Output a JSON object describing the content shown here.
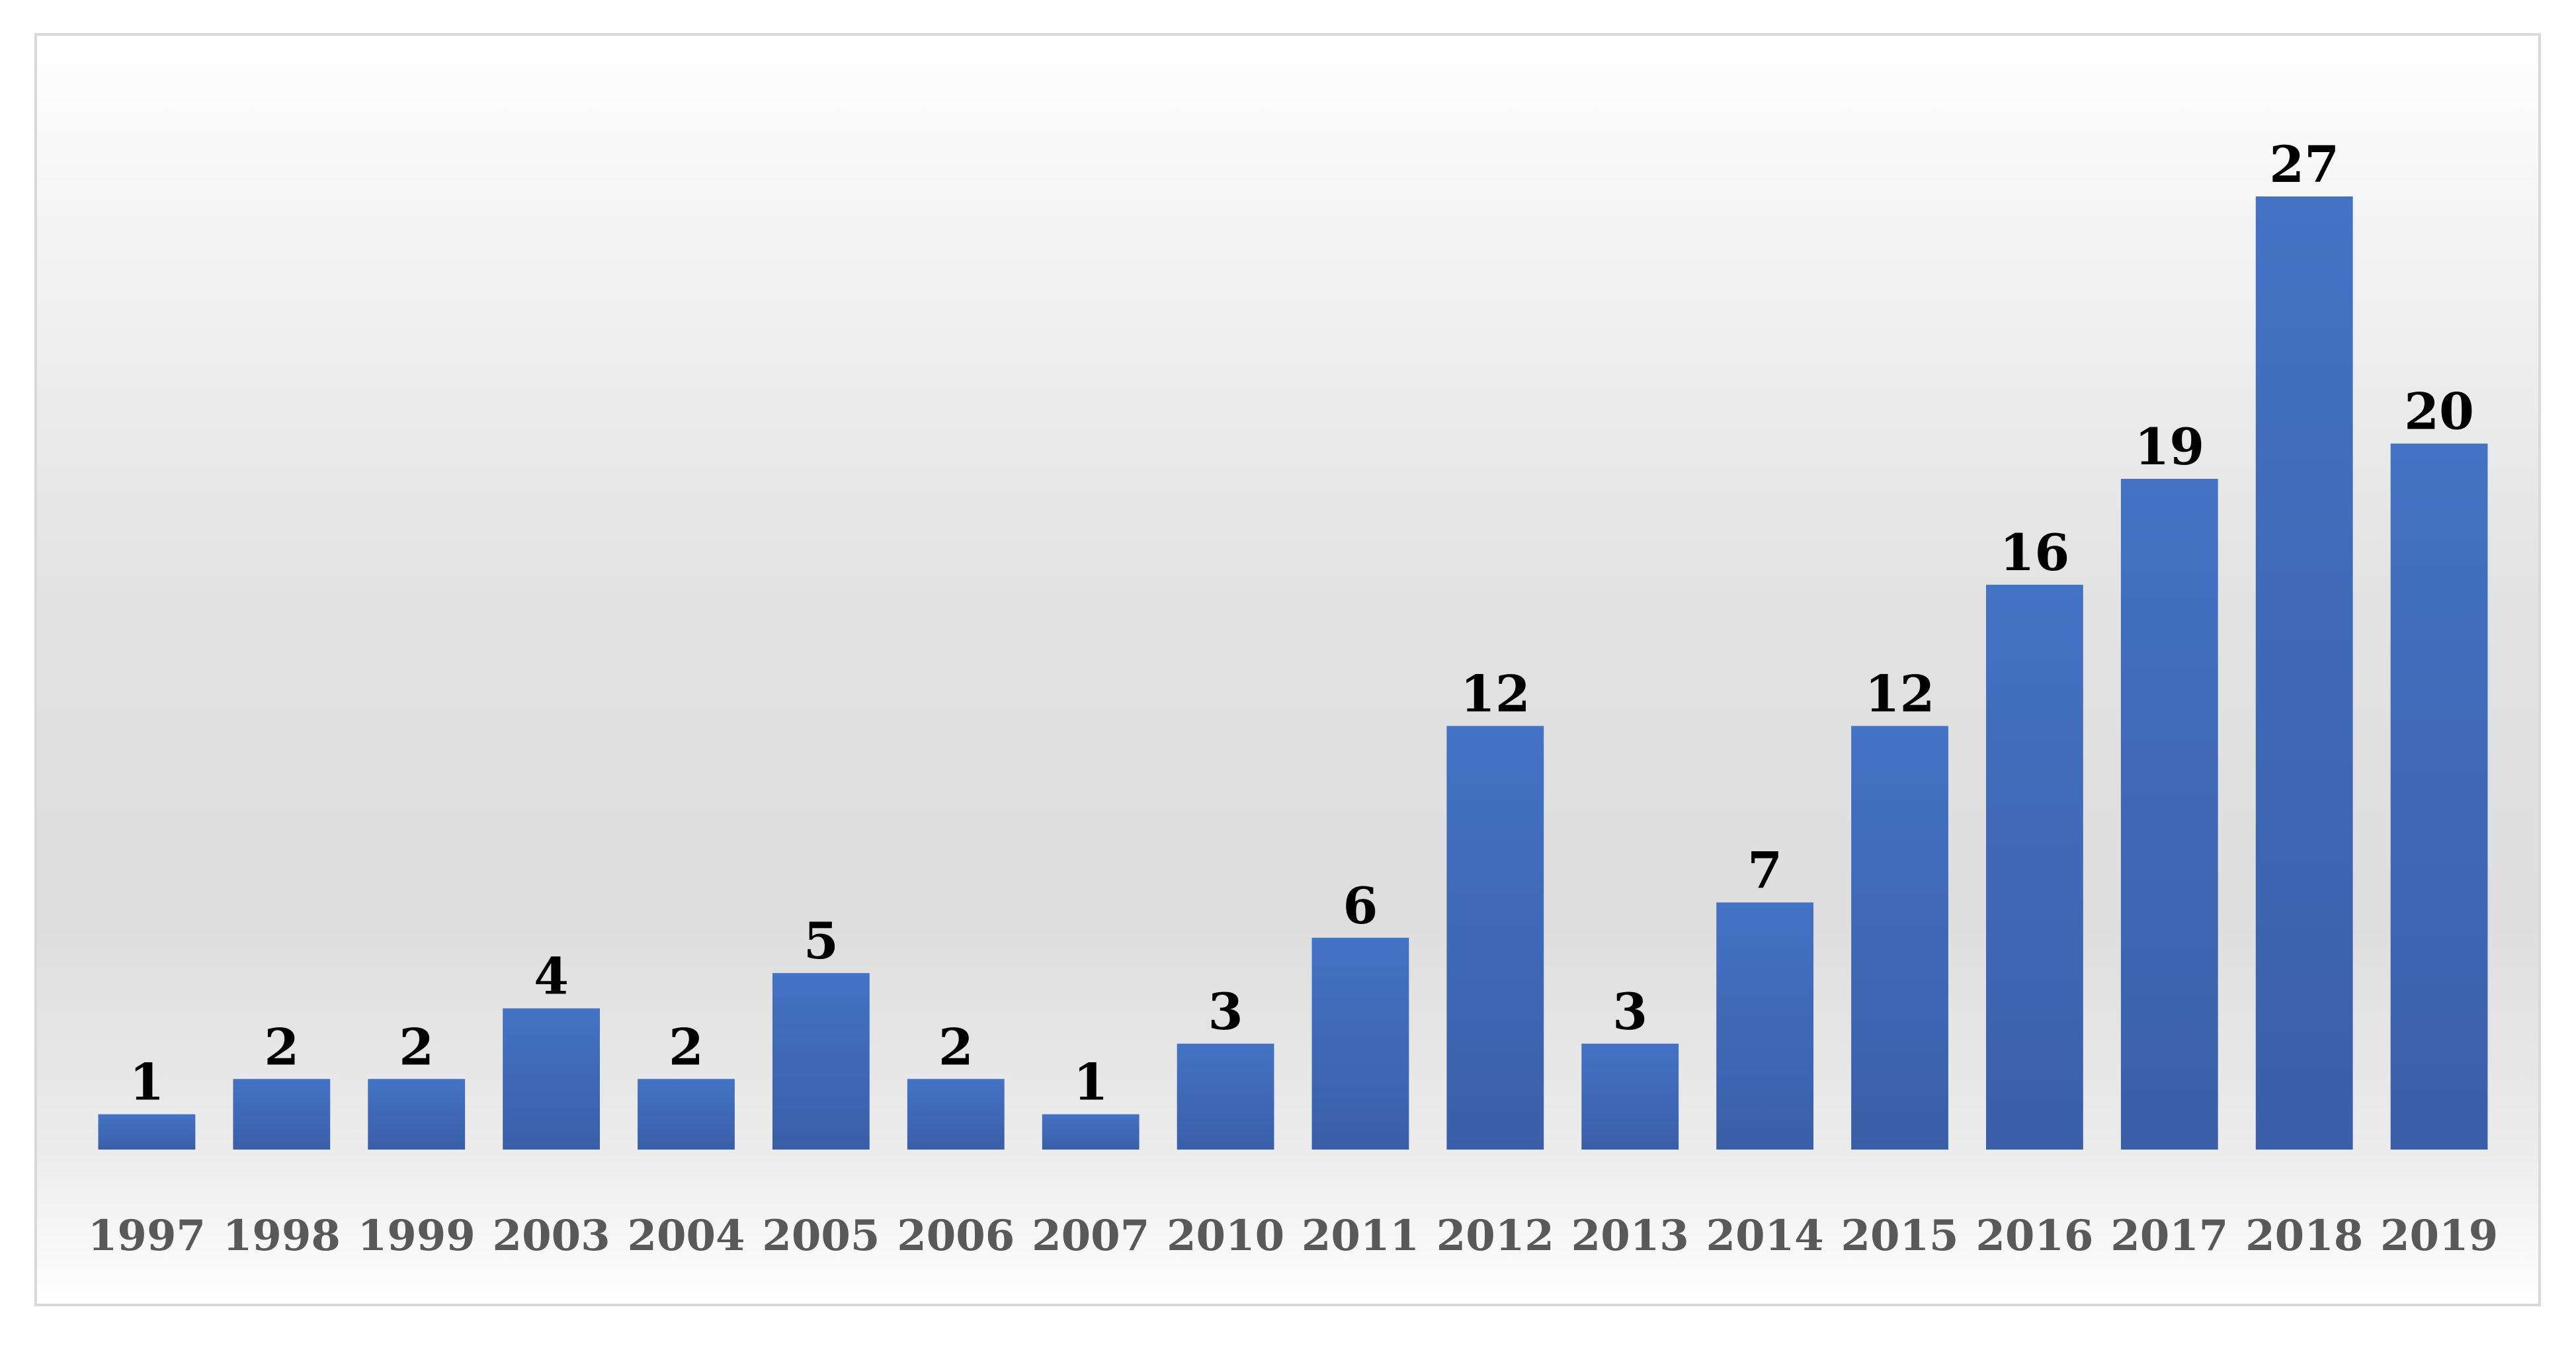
{
  "chart_data": {
    "type": "bar",
    "title": "",
    "xlabel": "",
    "ylabel": "",
    "categories": [
      "1997",
      "1998",
      "1999",
      "2003",
      "2004",
      "2005",
      "2006",
      "2007",
      "2010",
      "2011",
      "2012",
      "2013",
      "2014",
      "2015",
      "2016",
      "2017",
      "2018",
      "2019"
    ],
    "values": [
      1,
      2,
      2,
      4,
      2,
      5,
      2,
      1,
      3,
      6,
      12,
      3,
      7,
      12,
      16,
      19,
      27,
      20
    ],
    "ylim": [
      0,
      27
    ],
    "grid": false,
    "legend": "none",
    "data_labels": true,
    "colors": {
      "bar_top": "#4472C4",
      "bar_bottom": "#3A5FA8",
      "tick_text": "#595959",
      "value_text": "#000000"
    }
  }
}
